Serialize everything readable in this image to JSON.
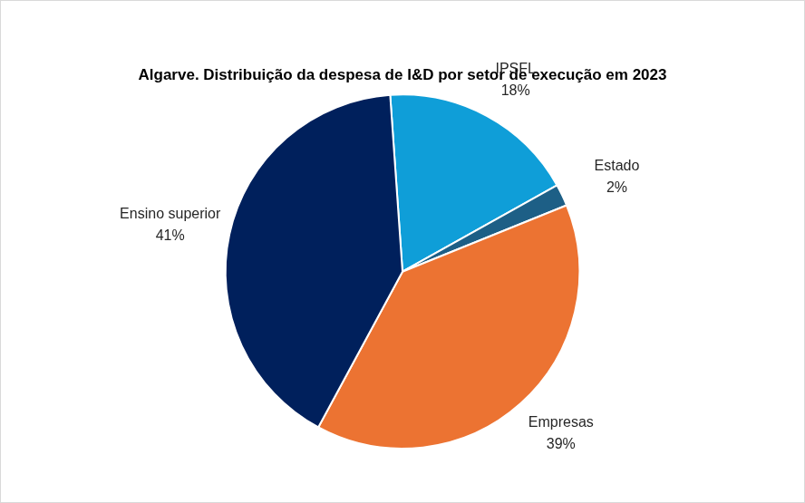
{
  "chart_data": {
    "type": "pie",
    "title": "Algarve. Distribuição da despesa de I&D por setor de execução em 2023",
    "categories": [
      "IPSFL",
      "Estado",
      "Empresas",
      "Ensino superior"
    ],
    "values": [
      18,
      2,
      39,
      41
    ],
    "value_labels": [
      "18%",
      "2%",
      "39%",
      "41%"
    ],
    "colors": [
      "#0f9ed8",
      "#1d5f86",
      "#ec7332",
      "#00205c"
    ],
    "data_labels": true
  }
}
